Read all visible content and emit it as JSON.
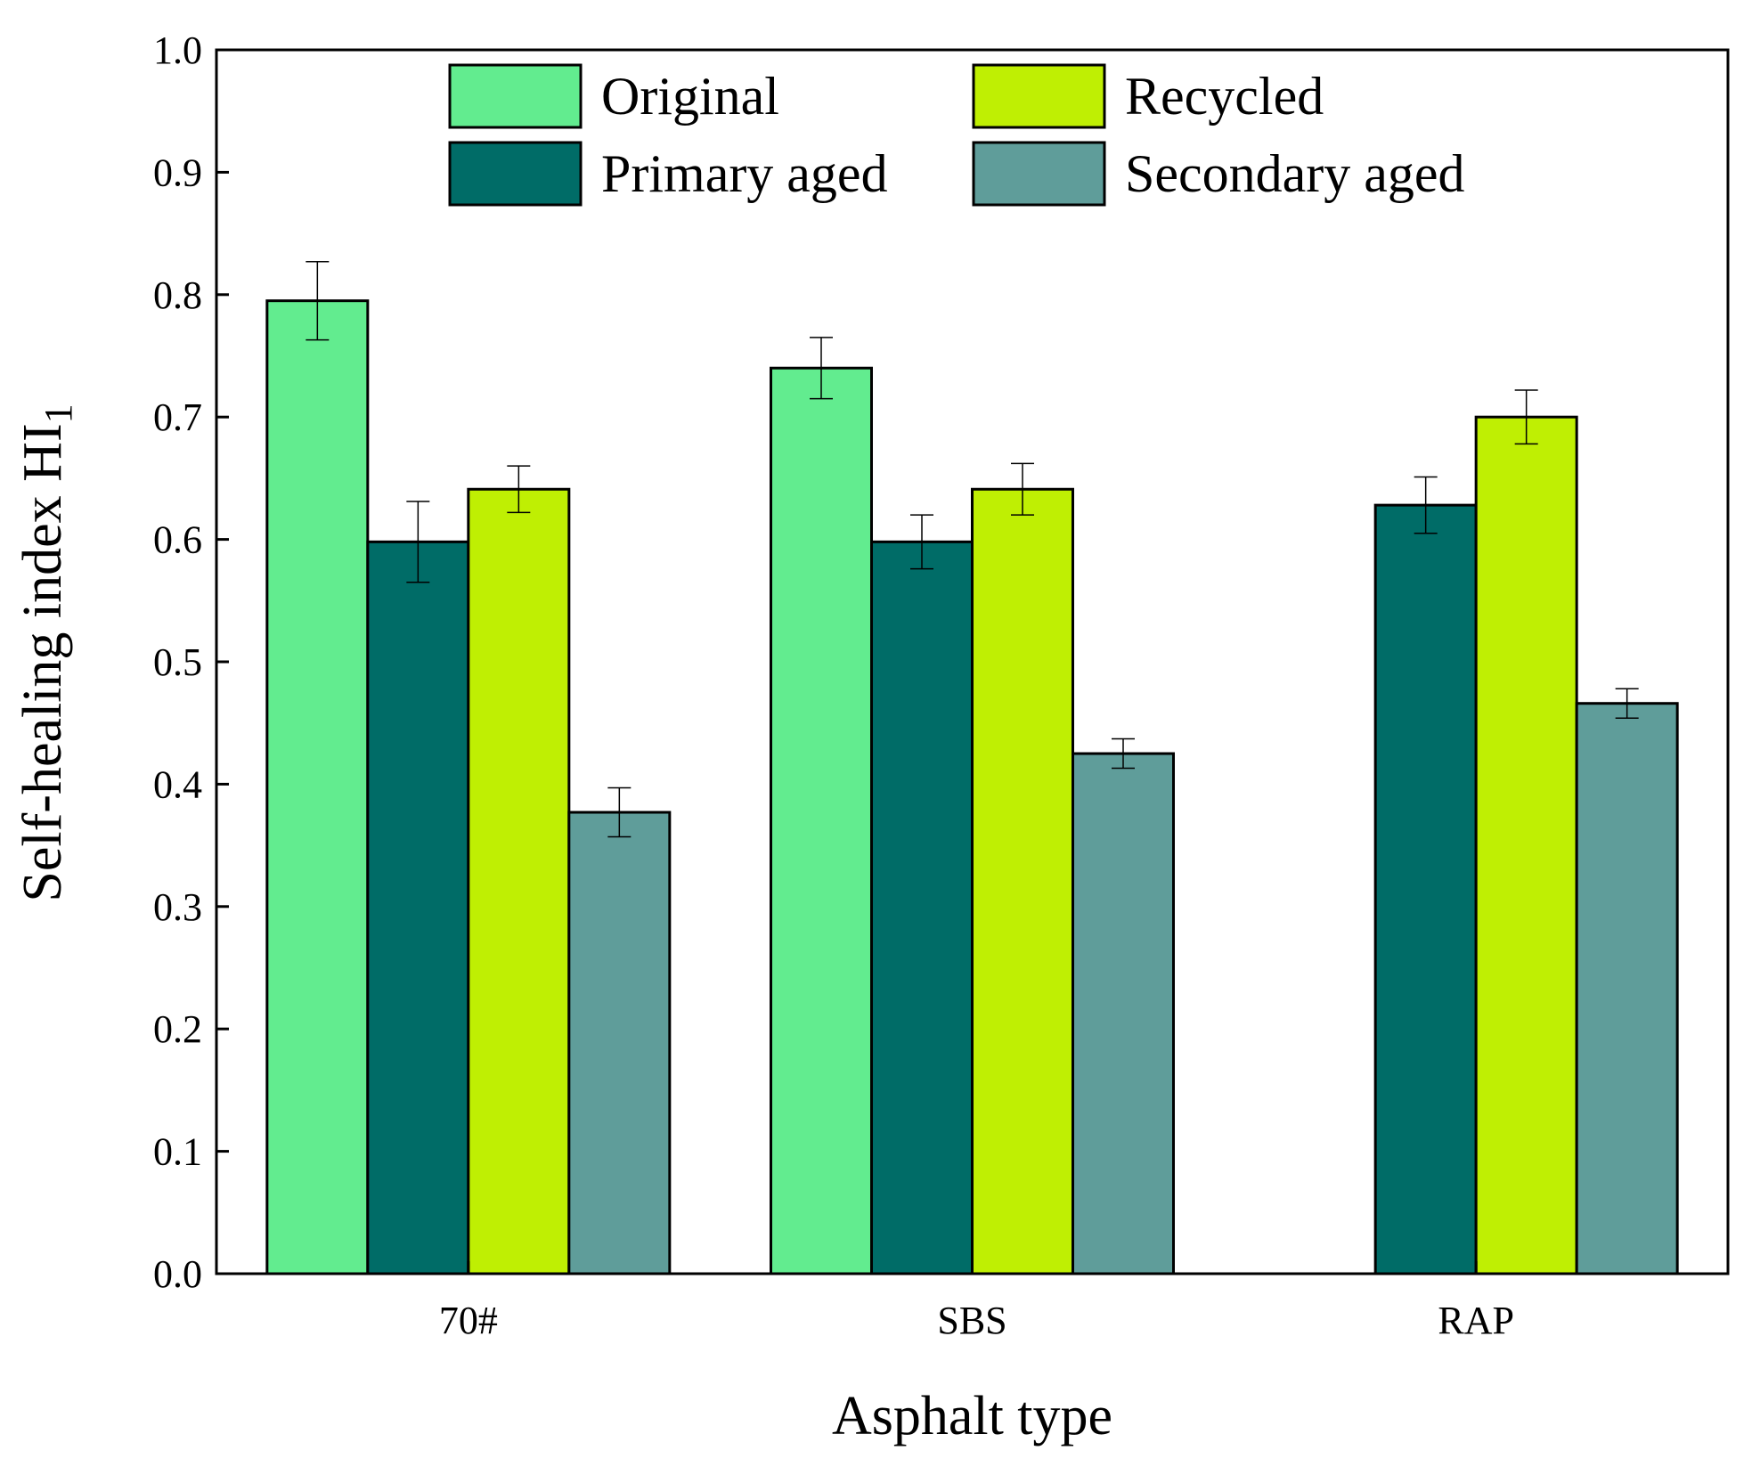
{
  "chart_data": {
    "type": "bar",
    "title": "",
    "xlabel": "Asphalt type",
    "ylabel": "Self-healing index HI",
    "ylabel_subscript": "1",
    "categories": [
      "70#",
      "SBS",
      "RAP"
    ],
    "ylim": [
      0,
      1.0
    ],
    "yticks": [
      "0.0",
      "0.1",
      "0.2",
      "0.3",
      "0.4",
      "0.5",
      "0.6",
      "0.7",
      "0.8",
      "0.9",
      "1.0"
    ],
    "ytick_values": [
      0,
      0.1,
      0.2,
      0.3,
      0.4,
      0.5,
      0.6,
      0.7,
      0.8,
      0.9,
      1.0
    ],
    "grid": false,
    "legend_position": "top",
    "series": [
      {
        "name": "Original",
        "color": "#62ec8f",
        "values": [
          0.795,
          0.74,
          null
        ],
        "errors": [
          0.032,
          0.025,
          null
        ]
      },
      {
        "name": "Primary aged",
        "color": "#006c67",
        "values": [
          0.598,
          0.598,
          0.628
        ],
        "errors": [
          0.033,
          0.022,
          0.023
        ]
      },
      {
        "name": "Recycled",
        "color": "#bfef03",
        "values": [
          0.641,
          0.641,
          0.7
        ],
        "errors": [
          0.019,
          0.021,
          0.022
        ]
      },
      {
        "name": "Secondary aged",
        "color": "#5f9d9a",
        "values": [
          0.377,
          0.425,
          0.466
        ],
        "errors": [
          0.02,
          0.012,
          0.012
        ]
      }
    ],
    "legend_order": [
      "Original",
      "Recycled",
      "Primary aged",
      "Secondary aged"
    ]
  }
}
